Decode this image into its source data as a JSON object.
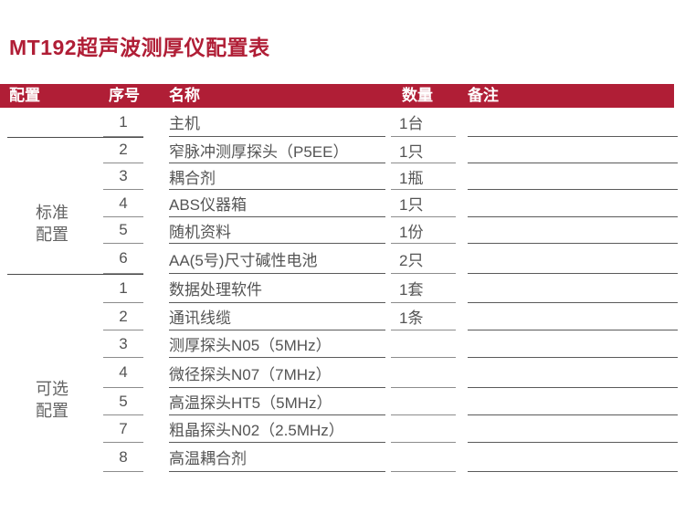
{
  "title": "MT192超声波测厚仪配置表",
  "colors": {
    "accent": "#B01E36",
    "body_text": "#545454",
    "rule_line": "#7a7a7a"
  },
  "table": {
    "headers": {
      "config": "配置",
      "index": "序号",
      "name": "名称",
      "qty": "数量",
      "note": "备注"
    },
    "groups": [
      {
        "label_lines": [
          "标准",
          "配置"
        ],
        "rows": [
          {
            "index": "1",
            "name": "主机",
            "qty": "1台",
            "note": ""
          },
          {
            "index": "2",
            "name": "窄脉冲测厚探头（P5EE）",
            "qty": "1只",
            "note": ""
          },
          {
            "index": "3",
            "name": "耦合剂",
            "qty": "1瓶",
            "note": ""
          },
          {
            "index": "4",
            "name": "ABS仪器箱",
            "qty": "1只",
            "note": ""
          },
          {
            "index": "5",
            "name": "随机资料",
            "qty": "1份",
            "note": ""
          },
          {
            "index": "6",
            "name": "AA(5号)尺寸碱性电池",
            "qty": "2只",
            "note": ""
          }
        ]
      },
      {
        "label_lines": [
          "可选",
          "配置"
        ],
        "rows": [
          {
            "index": "1",
            "name": "数据处理软件",
            "qty": "1套",
            "note": ""
          },
          {
            "index": "2",
            "name": "通讯线缆",
            "qty": "1条",
            "note": ""
          },
          {
            "index": "3",
            "name": "测厚探头N05（5MHz）",
            "qty": "",
            "note": ""
          },
          {
            "index": "4",
            "name": "微径探头N07（7MHz）",
            "qty": "",
            "note": ""
          },
          {
            "index": "5",
            "name": "高温探头HT5（5MHz）",
            "qty": "",
            "note": ""
          },
          {
            "index": "7",
            "name": "粗晶探头N02（2.5MHz）",
            "qty": "",
            "note": ""
          },
          {
            "index": "8",
            "name": "高温耦合剂",
            "qty": "",
            "note": ""
          }
        ]
      }
    ]
  }
}
